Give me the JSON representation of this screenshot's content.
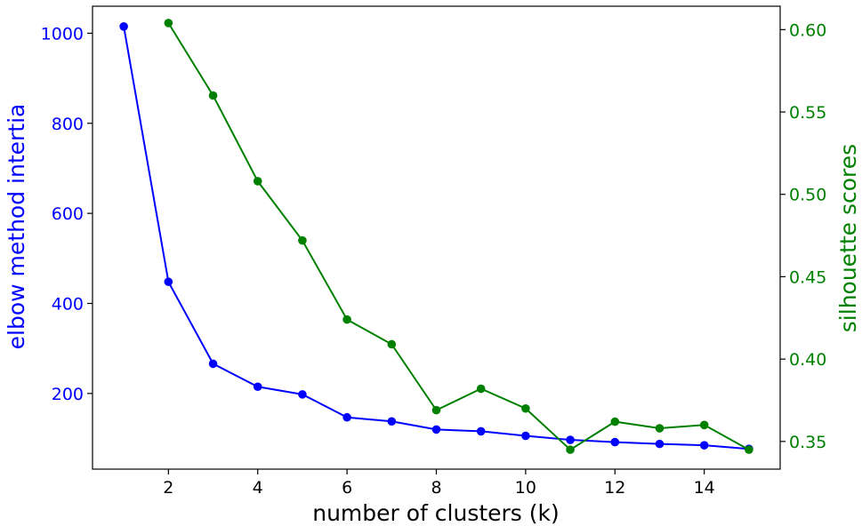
{
  "chart_data": {
    "type": "line",
    "xlabel": "number of clusters (k)",
    "ylabel_left": "elbow method intertia",
    "ylabel_right": "silhouette scores",
    "xlim": [
      0.3,
      15.7
    ],
    "ylim_left": [
      32,
      1060
    ],
    "ylim_right": [
      0.3332,
      0.6142
    ],
    "x_ticks": [
      "2",
      "4",
      "6",
      "8",
      "10",
      "12",
      "14"
    ],
    "y_ticks_left": [
      "200",
      "400",
      "600",
      "800",
      "1000"
    ],
    "y_ticks_right": [
      "0.35",
      "0.40",
      "0.45",
      "0.50",
      "0.55",
      "0.60"
    ],
    "grid": false,
    "colors": {
      "left_series": "#0000ff",
      "right_series": "#008000",
      "axes": "#000000"
    },
    "series": [
      {
        "axis": "left",
        "x": [
          1,
          2,
          3,
          4,
          5,
          6,
          7,
          8,
          9,
          10,
          11,
          12,
          13,
          14,
          15
        ],
        "y": [
          1015,
          448,
          266,
          215,
          198,
          147,
          138,
          120,
          116,
          106,
          97,
          92,
          88,
          85,
          77
        ]
      },
      {
        "axis": "right",
        "x": [
          2,
          3,
          4,
          5,
          6,
          7,
          8,
          9,
          10,
          11,
          12,
          13,
          14,
          15
        ],
        "y": [
          0.604,
          0.56,
          0.508,
          0.472,
          0.424,
          0.409,
          0.369,
          0.382,
          0.37,
          0.345,
          0.362,
          0.358,
          0.36,
          0.345
        ]
      }
    ]
  }
}
